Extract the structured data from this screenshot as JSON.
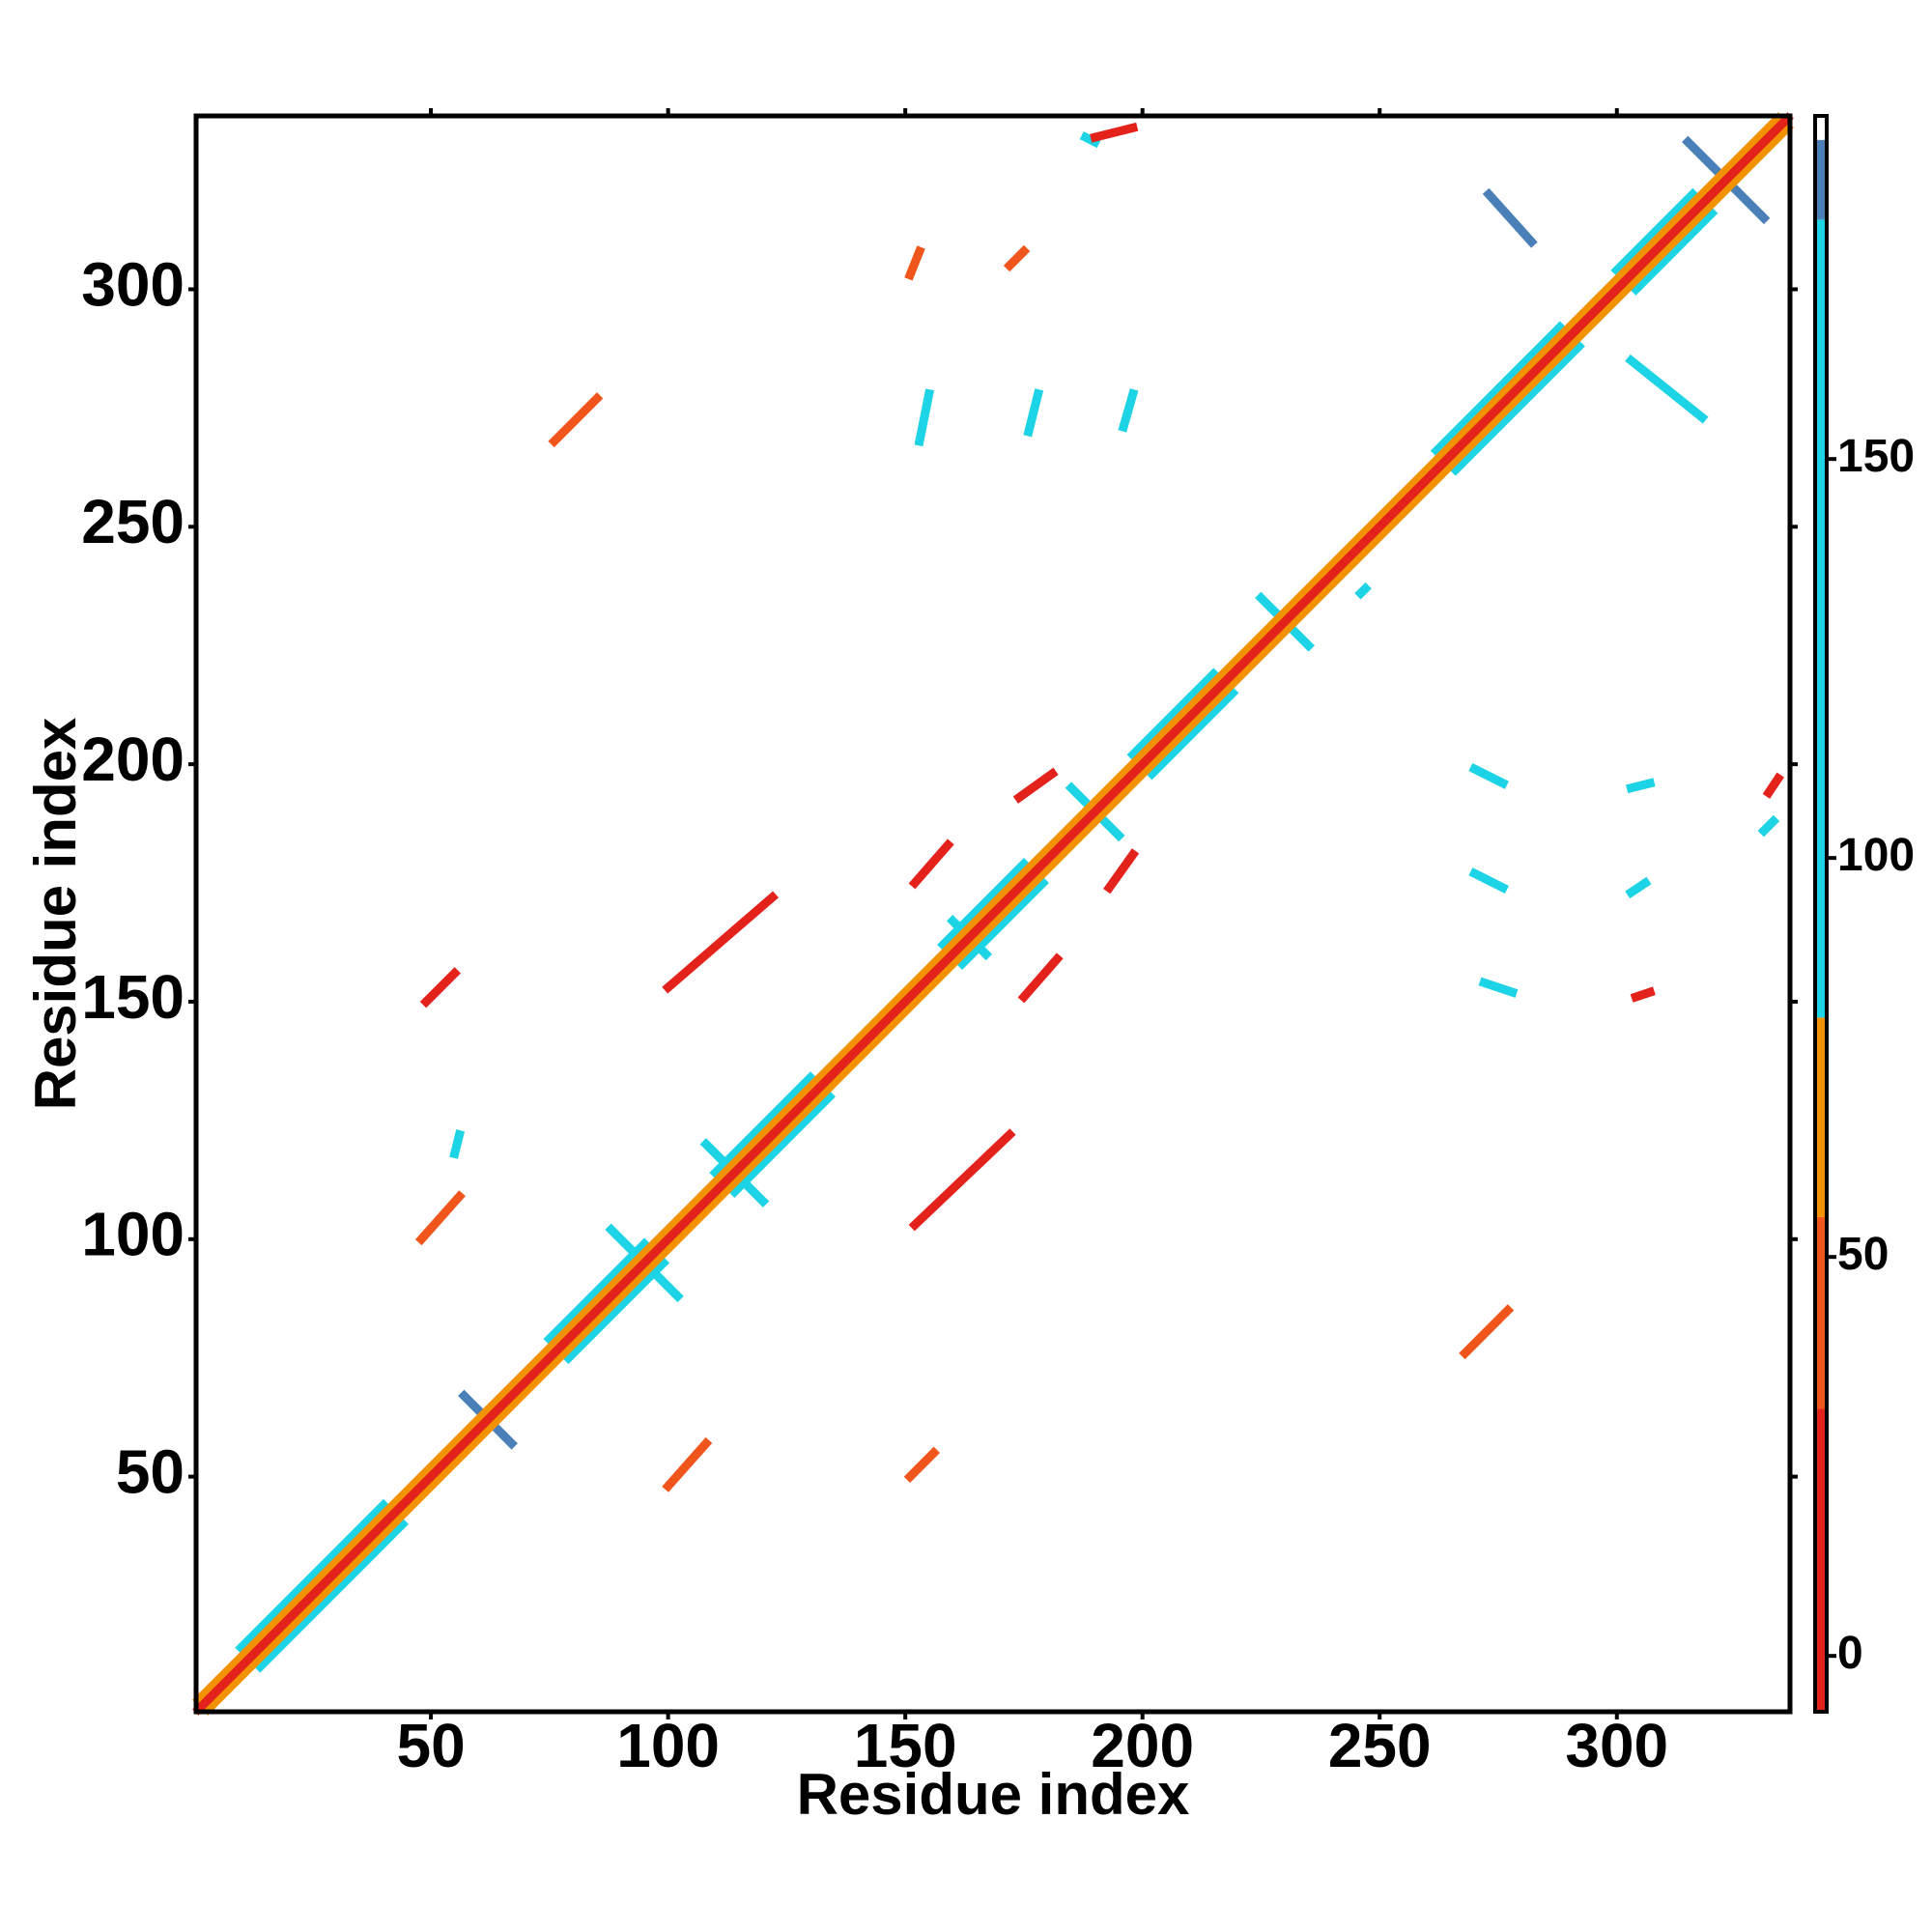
{
  "chart_data": {
    "type": "contact-map",
    "xlabel": "Residue index",
    "ylabel": "Residue index",
    "xlim": [
      0.5,
      336.5
    ],
    "ylim": [
      0.5,
      336.5
    ],
    "xticks": [
      50,
      100,
      150,
      200,
      250,
      300
    ],
    "yticks": [
      50,
      100,
      150,
      200,
      250,
      300
    ],
    "segments": {
      "x0": [
        10,
        14,
        75,
        79,
        110,
        114,
        158,
        162,
        198,
        202,
        262,
        266,
        300,
        304,
        1,
        3,
        1,
        57,
        315,
        88,
        108,
        225,
        185,
        160,
        48,
        49,
        100,
        151,
        152,
        175,
        174,
        193,
        76,
        268,
        151,
        172,
        190,
        332,
        55,
        270,
        303,
        303,
        270,
        272,
        304,
        188,
        331,
        273,
        303,
        152,
        100,
        153,
        176,
        196,
        255,
        246
      ],
      "y0": [
        14,
        10,
        79,
        75,
        114,
        110,
        162,
        158,
        202,
        198,
        266,
        262,
        304,
        300,
        3,
        1,
        1,
        67,
        331,
        102,
        120,
        235,
        195,
        167,
        100,
        150,
        48,
        50,
        175,
        151,
        193,
        174,
        268,
        76,
        303,
        305,
        332,
        194,
        118,
        199,
        195,
        173,
        177,
        154,
        151,
        332,
        186,
        320,
        285,
        103,
        153,
        268,
        270,
        271,
        253,
        236
      ],
      "x1": [
        40,
        44,
        95,
        99,
        130,
        134,
        175,
        179,
        215,
        219,
        288,
        292,
        316,
        320,
        334,
        336,
        336,
        67,
        331,
        102,
        120,
        235,
        195,
        167,
        56,
        55,
        108,
        156,
        159,
        182,
        181,
        198,
        85,
        277,
        153,
        175,
        198,
        334,
        56,
        276,
        307,
        306,
        276,
        278,
        307,
        190,
        333,
        282,
        318,
        172,
        122,
        155,
        178,
        198,
        256,
        247
      ],
      "y1": [
        44,
        40,
        99,
        95,
        134,
        130,
        179,
        175,
        219,
        215,
        292,
        288,
        320,
        316,
        336,
        334,
        336,
        57,
        315,
        88,
        108,
        225,
        185,
        160,
        109,
        156,
        57,
        55,
        183,
        159,
        198,
        181,
        277,
        85,
        308,
        308,
        334,
        197,
        122,
        196,
        196,
        175,
        174,
        152,
        152,
        331,
        188,
        310,
        273,
        122,
        172,
        278,
        278,
        278,
        254,
        237
      ],
      "values": [
        100,
        100,
        100,
        100,
        100,
        100,
        100,
        100,
        100,
        100,
        100,
        100,
        100,
        100,
        60,
        60,
        10,
        185,
        185,
        100,
        100,
        100,
        100,
        100,
        45,
        20,
        45,
        50,
        20,
        20,
        15,
        15,
        55,
        55,
        50,
        50,
        20,
        20,
        100,
        100,
        100,
        100,
        100,
        100,
        20,
        100,
        100,
        185,
        100,
        30,
        30,
        100,
        100,
        100,
        100,
        100
      ]
    },
    "colorbar": {
      "clim": [
        -7,
        193
      ],
      "ticks": [
        0,
        50,
        100,
        150
      ],
      "bands": [
        {
          "from": -7,
          "to": 31,
          "color": "#e3221b"
        },
        {
          "from": 31,
          "to": 55,
          "color": "#f0561b"
        },
        {
          "from": 55,
          "to": 80,
          "color": "#f39200"
        },
        {
          "from": 80,
          "to": 180,
          "color": "#1dd3e6"
        },
        {
          "from": 180,
          "to": 190,
          "color": "#4a7fb8"
        },
        {
          "from": 190,
          "to": 193,
          "color": "#ffffff"
        }
      ]
    }
  }
}
